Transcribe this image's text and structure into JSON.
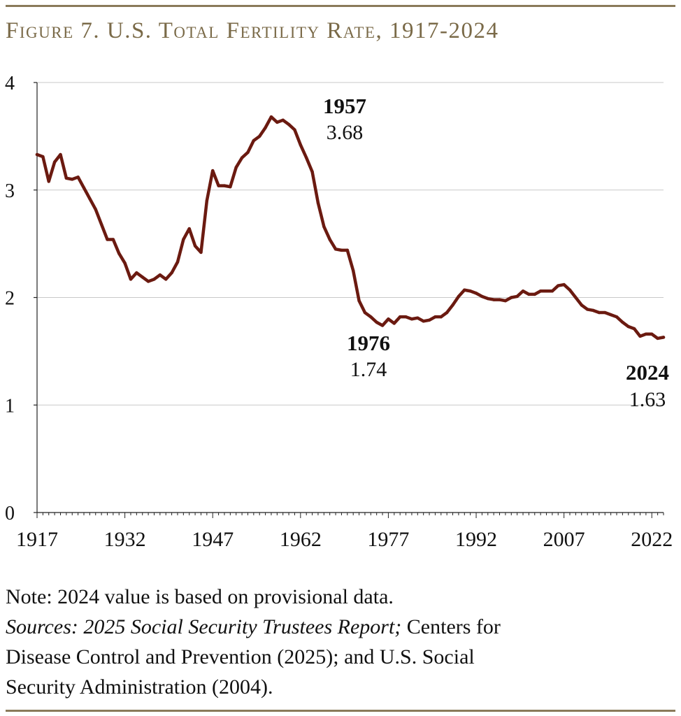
{
  "figure": {
    "title": "Figure 7. U.S. Total Fertility Rate, 1917-2024",
    "note": "Note: 2024 value is based on provisional data.",
    "sources_italic": "Sources: 2025 Social Security Trustees Report;",
    "sources_rest_1": " Centers for",
    "sources_line_2": "Disease Control and Prevention (2025); and U.S. Social",
    "sources_line_3": "Security Administration (2004)."
  },
  "colors": {
    "line": "#6b1a10",
    "grid": "#c8c8c8",
    "axis": "#222222",
    "title": "#7a6a48",
    "rule": "#8a7a5a"
  },
  "chart_data": {
    "type": "line",
    "title": "U.S. Total Fertility Rate, 1917-2024",
    "xlabel": "",
    "ylabel": "",
    "xlim": [
      1917,
      2024
    ],
    "ylim": [
      0,
      4
    ],
    "grid": true,
    "x_ticks": [
      "1917",
      "1932",
      "1947",
      "1962",
      "1977",
      "1992",
      "2007",
      "2022"
    ],
    "y_ticks": [
      "0",
      "1",
      "2",
      "3",
      "4"
    ],
    "series": [
      {
        "name": "Total Fertility Rate",
        "x": [
          1917,
          1918,
          1919,
          1920,
          1921,
          1922,
          1923,
          1924,
          1925,
          1926,
          1927,
          1928,
          1929,
          1930,
          1931,
          1932,
          1933,
          1934,
          1935,
          1936,
          1937,
          1938,
          1939,
          1940,
          1941,
          1942,
          1943,
          1944,
          1945,
          1946,
          1947,
          1948,
          1949,
          1950,
          1951,
          1952,
          1953,
          1954,
          1955,
          1956,
          1957,
          1958,
          1959,
          1960,
          1961,
          1962,
          1963,
          1964,
          1965,
          1966,
          1967,
          1968,
          1969,
          1970,
          1971,
          1972,
          1973,
          1974,
          1975,
          1976,
          1977,
          1978,
          1979,
          1980,
          1981,
          1982,
          1983,
          1984,
          1985,
          1986,
          1987,
          1988,
          1989,
          1990,
          1991,
          1992,
          1993,
          1994,
          1995,
          1996,
          1997,
          1998,
          1999,
          2000,
          2001,
          2002,
          2003,
          2004,
          2005,
          2006,
          2007,
          2008,
          2009,
          2010,
          2011,
          2012,
          2013,
          2014,
          2015,
          2016,
          2017,
          2018,
          2019,
          2020,
          2021,
          2022,
          2023,
          2024
        ],
        "values": [
          3.33,
          3.31,
          3.08,
          3.26,
          3.33,
          3.11,
          3.1,
          3.12,
          3.02,
          2.92,
          2.82,
          2.68,
          2.54,
          2.54,
          2.41,
          2.32,
          2.17,
          2.23,
          2.19,
          2.15,
          2.17,
          2.21,
          2.17,
          2.23,
          2.33,
          2.54,
          2.64,
          2.48,
          2.42,
          2.9,
          3.18,
          3.04,
          3.04,
          3.03,
          3.21,
          3.3,
          3.35,
          3.46,
          3.5,
          3.58,
          3.68,
          3.63,
          3.65,
          3.61,
          3.56,
          3.42,
          3.3,
          3.17,
          2.88,
          2.66,
          2.54,
          2.45,
          2.44,
          2.44,
          2.25,
          1.97,
          1.86,
          1.82,
          1.77,
          1.74,
          1.8,
          1.76,
          1.82,
          1.82,
          1.8,
          1.81,
          1.78,
          1.79,
          1.82,
          1.82,
          1.86,
          1.93,
          2.01,
          2.07,
          2.06,
          2.04,
          2.01,
          1.99,
          1.98,
          1.98,
          1.97,
          2.0,
          2.01,
          2.06,
          2.03,
          2.03,
          2.06,
          2.06,
          2.06,
          2.11,
          2.12,
          2.07,
          2.0,
          1.93,
          1.89,
          1.88,
          1.86,
          1.86,
          1.84,
          1.82,
          1.77,
          1.73,
          1.71,
          1.64,
          1.66,
          1.66,
          1.62,
          1.63
        ]
      }
    ],
    "annotations": [
      {
        "year": "1957",
        "value": "3.68"
      },
      {
        "year": "1976",
        "value": "1.74"
      },
      {
        "year": "2024",
        "value": "1.63"
      }
    ]
  }
}
